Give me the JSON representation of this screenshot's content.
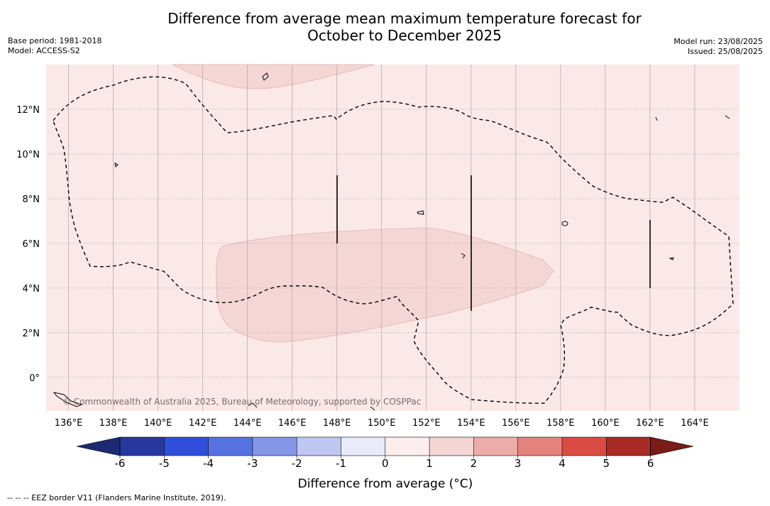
{
  "title": {
    "line1": "Difference from average mean maximum temperature forecast for",
    "line2": "October to December 2025"
  },
  "meta_left": {
    "base_period": "Base period: 1981-2018",
    "model": "Model: ACCESS-S2"
  },
  "meta_right": {
    "model_run": "Model run: 23/08/2025",
    "issued": "Issued: 25/08/2025"
  },
  "map": {
    "lon_range": [
      135,
      166
    ],
    "lat_range": [
      -1.5,
      14
    ],
    "lon_ticks": [
      136,
      138,
      140,
      142,
      144,
      146,
      148,
      150,
      152,
      154,
      156,
      158,
      160,
      162,
      164
    ],
    "lon_labels": [
      "136°E",
      "138°E",
      "140°E",
      "142°E",
      "144°E",
      "146°E",
      "148°E",
      "150°E",
      "152°E",
      "154°E",
      "156°E",
      "158°E",
      "160°E",
      "162°E",
      "164°E"
    ],
    "lat_ticks": [
      0,
      2,
      4,
      6,
      8,
      10,
      12
    ],
    "lat_labels": [
      "0°",
      "2°N",
      "4°N",
      "6°N",
      "8°N",
      "10°N",
      "12°N"
    ],
    "background_fill": "#fbe9e8",
    "anomaly_region_fill": "#f4d6d5",
    "copyright": "© Commonwealth of Australia 2025, Bureau of Meteorology, supported by COSPPac"
  },
  "colorbar": {
    "ticks": [
      "-6",
      "-5",
      "-4",
      "-3",
      "-2",
      "-1",
      "0",
      "1",
      "2",
      "3",
      "4",
      "5",
      "6"
    ],
    "colors": [
      "#27389f",
      "#2f4fdb",
      "#5672e0",
      "#8496e8",
      "#c0c7f2",
      "#e8ebfa",
      "#fdeeee",
      "#f4d5d4",
      "#ecaca8",
      "#e4837c",
      "#d94b43",
      "#a92b25"
    ],
    "extend_low_color": "#1c2a75",
    "extend_high_color": "#7a1c18",
    "label": "Difference from average (°C)"
  },
  "footer": {
    "legend": "--  --  -- EEZ border V11 (Flanders Marine Institute, 2019)."
  }
}
